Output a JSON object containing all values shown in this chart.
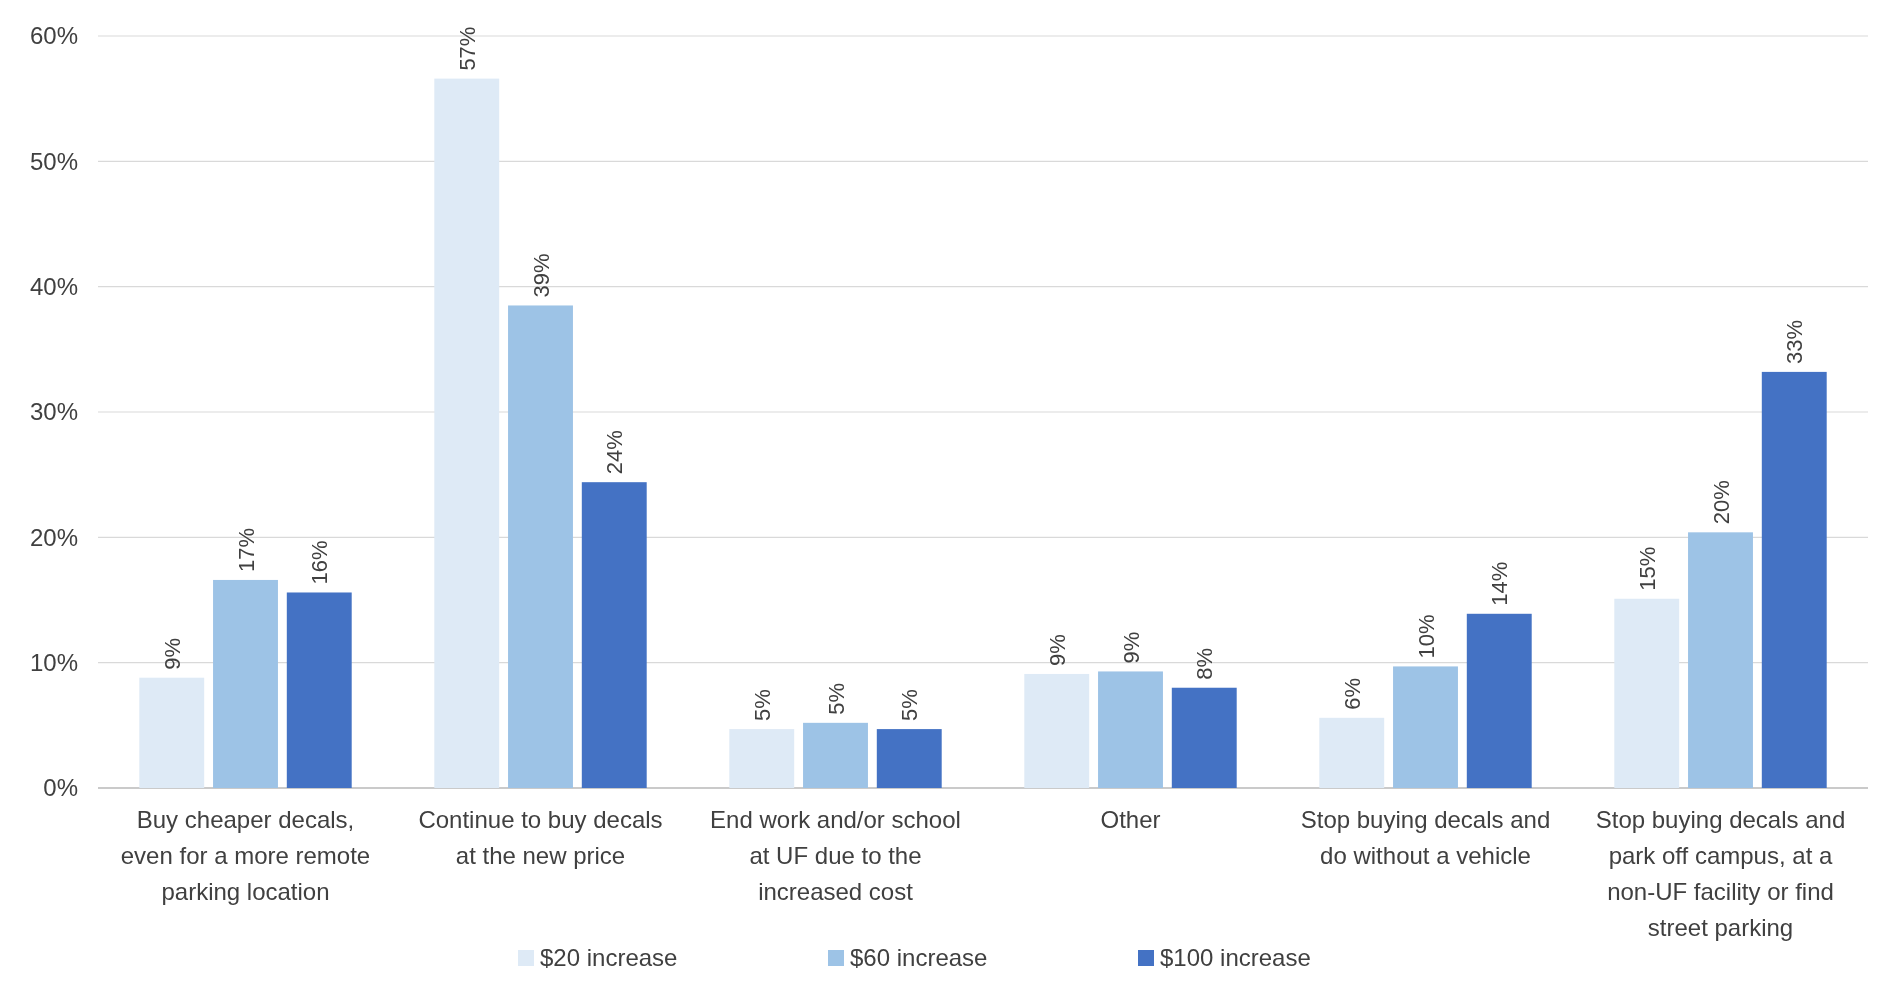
{
  "chart_data": {
    "type": "bar",
    "categories": [
      "Buy cheaper decals, even for a more remote parking location",
      "Continue to buy decals at the new price",
      "End work and/or school at UF due to the increased cost",
      "Other",
      "Stop buying decals and do without a vehicle",
      "Stop buying decals and park off campus, at a non-UF facility or find street parking"
    ],
    "series": [
      {
        "name": "$20 increase",
        "color": "#deeaf6",
        "values": [
          8.8,
          56.6,
          4.7,
          9.1,
          5.6,
          15.1
        ],
        "value_labels": [
          "9%",
          "57%",
          "5%",
          "9%",
          "6%",
          "15%"
        ]
      },
      {
        "name": "$60 increase",
        "color": "#9dc3e6",
        "values": [
          16.6,
          38.5,
          5.2,
          9.3,
          9.7,
          20.4
        ],
        "value_labels": [
          "17%",
          "39%",
          "5%",
          "9%",
          "10%",
          "20%"
        ]
      },
      {
        "name": "$100 increase",
        "color": "#4472c4",
        "values": [
          15.6,
          24.4,
          4.7,
          8.0,
          13.9,
          33.2
        ],
        "value_labels": [
          "16%",
          "24%",
          "5%",
          "8%",
          "14%",
          "33%"
        ]
      }
    ],
    "ylim": [
      0,
      60
    ],
    "yticks": [
      {
        "value": 0,
        "label": "0%"
      },
      {
        "value": 10,
        "label": "10%"
      },
      {
        "value": 20,
        "label": "20%"
      },
      {
        "value": 30,
        "label": "30%"
      },
      {
        "value": 40,
        "label": "40%"
      },
      {
        "value": 50,
        "label": "50%"
      },
      {
        "value": 60,
        "label": "60%"
      }
    ],
    "grid": "y",
    "legend": "bottom"
  }
}
